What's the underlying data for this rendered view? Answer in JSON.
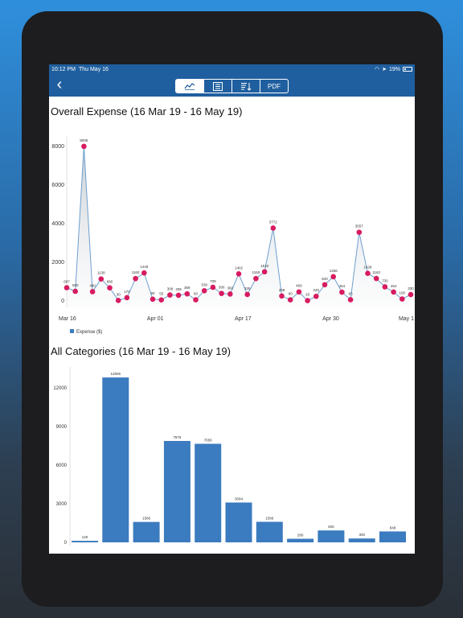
{
  "status": {
    "time": "10:12 PM",
    "date": "Thu May 16",
    "battery": "19%"
  },
  "nav": {
    "back_icon": "chevron-left-icon",
    "segments": [
      {
        "name": "line-chart-icon",
        "label": "",
        "active": true
      },
      {
        "name": "list-icon",
        "label": "",
        "active": false
      },
      {
        "name": "sort-icon",
        "label": "",
        "active": false
      },
      {
        "name": "pdf-button",
        "label": "PDF",
        "active": false
      }
    ]
  },
  "expense_title": "Overall Expense (16 Mar 19 - 16 May 19)",
  "categories_title": "All Categories (16 Mar 19 - 16 May 19)",
  "colors": {
    "nav": "#1f5f9f",
    "point": "#d81b60",
    "line": "#6d9fd0",
    "bar": "#3b7bbf"
  },
  "chart_data": [
    {
      "type": "area",
      "title": "Overall Expense (16 Mar 19 - 16 May 19)",
      "x_ticks": [
        "Mar 16",
        "Apr 01",
        "Apr 17",
        "Apr 30",
        "May 1"
      ],
      "y_ticks": [
        "0",
        "2000",
        "4000",
        "6000",
        "8000"
      ],
      "ylim": [
        0,
        8000
      ],
      "legend": "Expense ($)",
      "values": [
        687,
        500,
        8005,
        480,
        1138,
        680,
        30,
        170,
        1160,
        1449,
        90,
        55,
        308,
        295,
        369,
        60,
        530,
        708,
        390,
        360,
        1402,
        335,
        1160,
        1510,
        3772,
        258,
        60,
        469,
        20,
        240,
        840,
        1256,
        454,
        65,
        3557,
        1428,
        1163,
        730,
        464,
        100,
        330
      ],
      "labels": [
        "687",
        "500",
        "8005",
        "480",
        "1138",
        "680",
        "30",
        "170",
        "1160",
        "1449",
        "90",
        "55",
        "308",
        "295",
        "369",
        "60",
        "530",
        "708",
        "390",
        "360",
        "1402",
        "335",
        "1160",
        "1510",
        "3772",
        "258",
        "60",
        "469",
        "20",
        "240",
        "840",
        "1256",
        "454",
        "65",
        "3557",
        "1428",
        "1163",
        "730",
        "464",
        "100",
        "330"
      ]
    },
    {
      "type": "bar",
      "title": "All Categories (16 Mar 19 - 16 May 19)",
      "y_ticks": [
        "0",
        "3000",
        "6000",
        "9000",
        "12000"
      ],
      "ylim": [
        0,
        13500
      ],
      "values": [
        120,
        12806,
        1586,
        7876,
        7656,
        3094,
        1596,
        280,
        926,
        300,
        848
      ],
      "labels": [
        "120",
        "12806",
        "1586",
        "7876",
        "7656",
        "3094",
        "1596",
        "280",
        "926",
        "300",
        "848"
      ]
    }
  ]
}
